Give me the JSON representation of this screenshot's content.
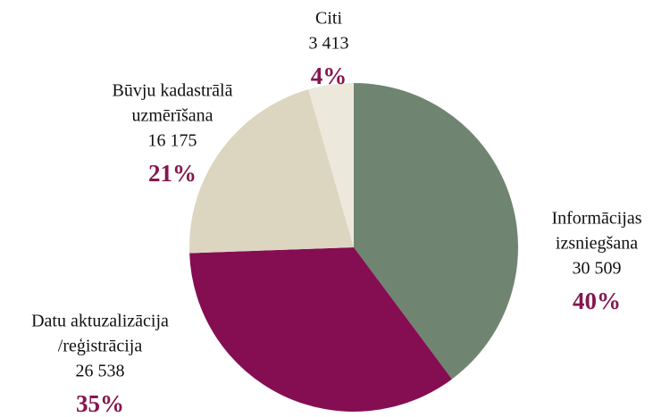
{
  "chart_data": {
    "type": "pie",
    "categories": [
      [
        "Informācijas",
        "izsniegšana"
      ],
      [
        "Datu aktuzalizācija",
        "/reģistrācija"
      ],
      [
        "Būvju kadastrālā",
        "uzmērīšana"
      ],
      [
        "Citi"
      ]
    ],
    "counts": [
      30509,
      26538,
      16175,
      3413
    ],
    "count_labels": [
      "30 509",
      "26 538",
      "16 175",
      "3 413"
    ],
    "values": [
      40,
      35,
      21,
      4
    ],
    "value_labels": [
      "40%",
      "35%",
      "21%",
      "4%"
    ],
    "colors": [
      "#6f8572",
      "#850d52",
      "#dcd6c0",
      "#ede8dc"
    ],
    "label_color": "#85174f"
  }
}
